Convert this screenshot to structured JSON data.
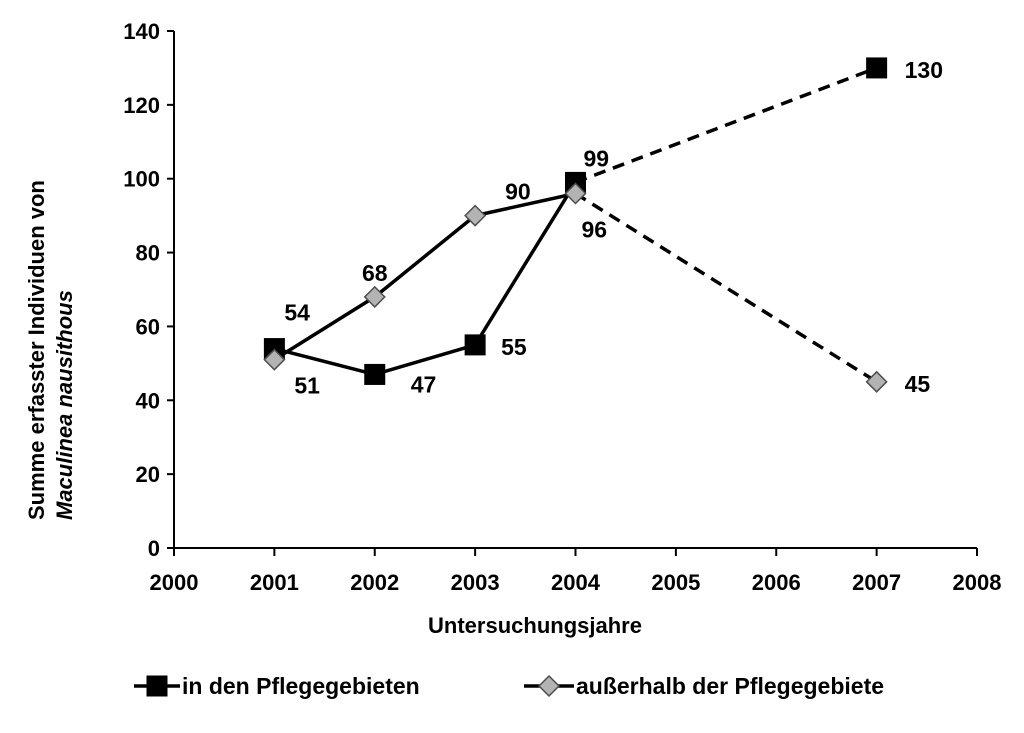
{
  "chart_data": {
    "type": "line",
    "title": "",
    "xlabel": "Untersuchungsjahre",
    "ylabel_line1": "Summe erfasster Individuen von",
    "ylabel_line2": "Maculinea nausithous",
    "xlim": [
      2000,
      2008
    ],
    "ylim": [
      0,
      140
    ],
    "xticks": [
      2000,
      2001,
      2002,
      2003,
      2004,
      2005,
      2006,
      2007,
      2008
    ],
    "yticks": [
      0,
      20,
      40,
      60,
      80,
      100,
      120,
      140
    ],
    "grid": false,
    "legend_position": "bottom",
    "series": [
      {
        "name": "in den Pflegegebieten",
        "marker": "square",
        "color": "#000000",
        "points": [
          {
            "x": 2001,
            "y": 54,
            "label": "54"
          },
          {
            "x": 2002,
            "y": 47,
            "label": "47"
          },
          {
            "x": 2003,
            "y": 55,
            "label": "55"
          },
          {
            "x": 2004,
            "y": 99,
            "label": "99"
          },
          {
            "x": 2007,
            "y": 130,
            "label": "130"
          }
        ]
      },
      {
        "name": "außerhalb der Pflegegebiete",
        "marker": "diamond",
        "color": "#b3b3b3",
        "points": [
          {
            "x": 2001,
            "y": 51,
            "label": "51"
          },
          {
            "x": 2002,
            "y": 68,
            "label": "68"
          },
          {
            "x": 2003,
            "y": 90,
            "label": "90"
          },
          {
            "x": 2004,
            "y": 96,
            "label": "96"
          },
          {
            "x": 2007,
            "y": 45,
            "label": "45"
          }
        ]
      }
    ],
    "dashed_from_x": 2004
  }
}
